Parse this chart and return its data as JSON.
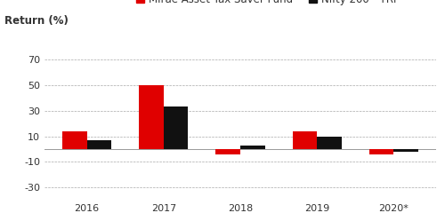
{
  "years": [
    "2016",
    "2017",
    "2018",
    "2019",
    "2020*"
  ],
  "mirae": [
    14,
    50,
    -4,
    14,
    -4
  ],
  "nifty": [
    7,
    33,
    3,
    10,
    -2
  ],
  "mirae_color": "#e00000",
  "nifty_color": "#111111",
  "ylabel": "Return (%)",
  "yticks": [
    -30,
    -10,
    10,
    30,
    50,
    70
  ],
  "ylim": [
    -40,
    80
  ],
  "bar_width": 0.32,
  "background_color": "#ffffff",
  "grid_color": "#aaaaaa",
  "tick_fontsize": 8,
  "header_fontsize": 8.5,
  "legend_fontsize": 8.5
}
